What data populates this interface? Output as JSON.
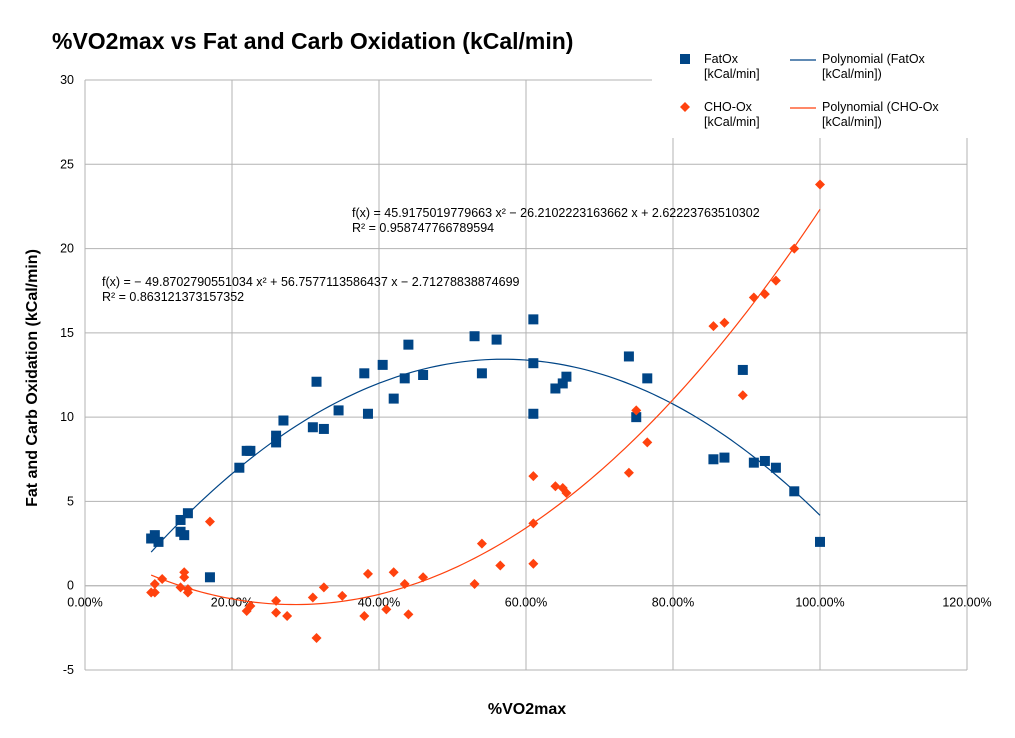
{
  "chart_data": {
    "type": "scatter",
    "title": "%VO2max vs Fat and Carb Oxidation (kCal/min)",
    "xlabel": "%VO2max",
    "ylabel": "Fat and Carb Oxidation (kCal/min)",
    "xlim": [
      0,
      1.2
    ],
    "ylim": [
      -5,
      30
    ],
    "x_tick_labels": [
      "0.00%",
      "20.00%",
      "40.00%",
      "60.00%",
      "80.00%",
      "100.00%",
      "120.00%"
    ],
    "x_ticks": [
      0,
      0.2,
      0.4,
      0.6,
      0.8,
      1.0,
      1.2
    ],
    "y_tick_labels": [
      "-5",
      "0",
      "5",
      "10",
      "15",
      "20",
      "25",
      "30"
    ],
    "y_ticks": [
      -5,
      0,
      5,
      10,
      15,
      20,
      25,
      30
    ],
    "grid": true,
    "legend_position": "top-right",
    "series": [
      {
        "name_line1": "FatOx",
        "name_line2": "[kCal/min]",
        "marker": "square",
        "color": "#004586",
        "points": [
          [
            0.09,
            2.8
          ],
          [
            0.095,
            3.0
          ],
          [
            0.1,
            2.6
          ],
          [
            0.13,
            3.9
          ],
          [
            0.13,
            3.2
          ],
          [
            0.135,
            3.0
          ],
          [
            0.14,
            4.3
          ],
          [
            0.17,
            0.5
          ],
          [
            0.21,
            7.0
          ],
          [
            0.22,
            8.0
          ],
          [
            0.225,
            8.0
          ],
          [
            0.26,
            8.9
          ],
          [
            0.26,
            8.5
          ],
          [
            0.27,
            9.8
          ],
          [
            0.31,
            9.4
          ],
          [
            0.315,
            12.1
          ],
          [
            0.325,
            9.3
          ],
          [
            0.345,
            10.4
          ],
          [
            0.38,
            12.6
          ],
          [
            0.385,
            10.2
          ],
          [
            0.405,
            13.1
          ],
          [
            0.42,
            11.1
          ],
          [
            0.435,
            12.3
          ],
          [
            0.44,
            14.3
          ],
          [
            0.46,
            12.5
          ],
          [
            0.53,
            14.8
          ],
          [
            0.54,
            12.6
          ],
          [
            0.56,
            14.6
          ],
          [
            0.61,
            15.8
          ],
          [
            0.61,
            13.2
          ],
          [
            0.61,
            10.2
          ],
          [
            0.64,
            11.7
          ],
          [
            0.65,
            12.0
          ],
          [
            0.655,
            12.4
          ],
          [
            0.74,
            13.6
          ],
          [
            0.75,
            10.0
          ],
          [
            0.765,
            12.3
          ],
          [
            0.855,
            7.5
          ],
          [
            0.87,
            7.6
          ],
          [
            0.895,
            12.8
          ],
          [
            0.91,
            7.3
          ],
          [
            0.925,
            7.4
          ],
          [
            0.94,
            7.0
          ],
          [
            0.965,
            5.6
          ],
          [
            1.0,
            2.6
          ]
        ]
      },
      {
        "name_line1": "CHO-Ox",
        "name_line2": "[kCal/min]",
        "marker": "diamond",
        "color": "#ff420e",
        "points": [
          [
            0.09,
            -0.4
          ],
          [
            0.095,
            0.1
          ],
          [
            0.095,
            -0.4
          ],
          [
            0.105,
            0.4
          ],
          [
            0.13,
            -0.1
          ],
          [
            0.135,
            0.5
          ],
          [
            0.135,
            0.8
          ],
          [
            0.14,
            -0.2
          ],
          [
            0.14,
            -0.4
          ],
          [
            0.17,
            3.8
          ],
          [
            0.22,
            -1.5
          ],
          [
            0.225,
            -1.2
          ],
          [
            0.26,
            -0.9
          ],
          [
            0.26,
            -1.6
          ],
          [
            0.275,
            -1.8
          ],
          [
            0.31,
            -0.7
          ],
          [
            0.315,
            -3.1
          ],
          [
            0.325,
            -0.1
          ],
          [
            0.35,
            -0.6
          ],
          [
            0.38,
            -1.8
          ],
          [
            0.385,
            0.7
          ],
          [
            0.41,
            -1.4
          ],
          [
            0.42,
            0.8
          ],
          [
            0.435,
            0.1
          ],
          [
            0.44,
            -1.7
          ],
          [
            0.46,
            0.5
          ],
          [
            0.53,
            0.1
          ],
          [
            0.54,
            2.5
          ],
          [
            0.565,
            1.2
          ],
          [
            0.61,
            6.5
          ],
          [
            0.61,
            3.7
          ],
          [
            0.61,
            1.3
          ],
          [
            0.64,
            5.9
          ],
          [
            0.65,
            5.8
          ],
          [
            0.655,
            5.5
          ],
          [
            0.74,
            6.7
          ],
          [
            0.75,
            10.4
          ],
          [
            0.765,
            8.5
          ],
          [
            0.855,
            15.4
          ],
          [
            0.87,
            15.6
          ],
          [
            0.895,
            11.3
          ],
          [
            0.91,
            17.1
          ],
          [
            0.925,
            17.3
          ],
          [
            0.94,
            18.1
          ],
          [
            0.965,
            20.0
          ],
          [
            1.0,
            23.8
          ]
        ]
      }
    ],
    "trendlines": [
      {
        "name_line1": "Polynomial (FatOx",
        "name_line2": "[kCal/min])",
        "color": "#004586",
        "coefficients": [
          -49.8702790551034,
          56.7577113586437,
          -2.71278838874699
        ],
        "x_range": [
          0.09,
          1.0
        ],
        "equation": "f(x) = − 49.8702790551034 x² + 56.7577113586437 x − 2.71278838874699",
        "r_squared": "R² = 0.863121373157352"
      },
      {
        "name_line1": "Polynomial (CHO-Ox",
        "name_line2": "[kCal/min])",
        "color": "#ff420e",
        "coefficients": [
          45.9175019779663,
          -26.2102223163662,
          2.62223763510302
        ],
        "x_range": [
          0.09,
          1.0
        ],
        "equation": "f(x) = 45.9175019779663 x² − 26.2102223163662 x + 2.62223763510302",
        "r_squared": "R² = 0.958747766789594"
      }
    ]
  }
}
